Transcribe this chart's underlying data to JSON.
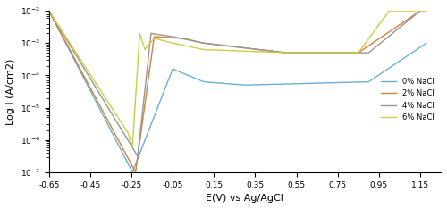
{
  "title": "",
  "xlabel": "E(V) vs Ag/AgCl",
  "ylabel": "Log I (A/cm2)",
  "xlim": [
    -0.65,
    1.25
  ],
  "ylim_log": [
    1e-07,
    0.01
  ],
  "xticks": [
    -0.65,
    -0.45,
    -0.25,
    -0.05,
    0.15,
    0.35,
    0.55,
    0.75,
    0.95,
    1.15
  ],
  "colors": {
    "0% NaCl": "#6baed6",
    "2% NaCl": "#d4813a",
    "4% NaCl": "#969696",
    "6% NaCl": "#cccc44"
  },
  "legend_labels": [
    "0% NaCl",
    "2% NaCl",
    "4% NaCl",
    "6% NaCl"
  ]
}
